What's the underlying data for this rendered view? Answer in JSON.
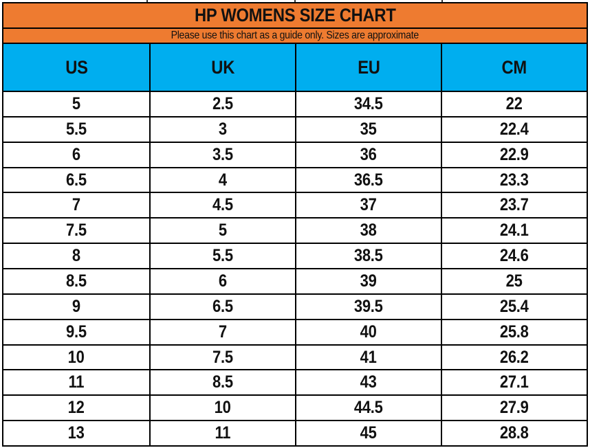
{
  "title": "HP WOMENS SIZE CHART",
  "subtitle": "Please use this chart as a guide only. Sizes are approximate",
  "colors": {
    "header_orange": "#EE7B30",
    "header_blue": "#00AEEF",
    "border_black": "#000000"
  },
  "chart_data": {
    "type": "table",
    "title": "HP WOMENS SIZE CHART",
    "subtitle": "Please use this chart as a guide only. Sizes are approximate",
    "columns": [
      "US",
      "UK",
      "EU",
      "CM"
    ],
    "rows": [
      [
        "5",
        "2.5",
        "34.5",
        "22"
      ],
      [
        "5.5",
        "3",
        "35",
        "22.4"
      ],
      [
        "6",
        "3.5",
        "36",
        "22.9"
      ],
      [
        "6.5",
        "4",
        "36.5",
        "23.3"
      ],
      [
        "7",
        "4.5",
        "37",
        "23.7"
      ],
      [
        "7.5",
        "5",
        "38",
        "24.1"
      ],
      [
        "8",
        "5.5",
        "38.5",
        "24.6"
      ],
      [
        "8.5",
        "6",
        "39",
        "25"
      ],
      [
        "9",
        "6.5",
        "39.5",
        "25.4"
      ],
      [
        "9.5",
        "7",
        "40",
        "25.8"
      ],
      [
        "10",
        "7.5",
        "41",
        "26.2"
      ],
      [
        "11",
        "8.5",
        "43",
        "27.1"
      ],
      [
        "12",
        "10",
        "44.5",
        "27.9"
      ],
      [
        "13",
        "11",
        "45",
        "28.8"
      ]
    ],
    "layout": {
      "grid": true,
      "column_widths_pct": [
        25,
        25,
        25,
        25
      ],
      "header_fill": "#00AEEF",
      "title_fill": "#EE7B30"
    }
  }
}
